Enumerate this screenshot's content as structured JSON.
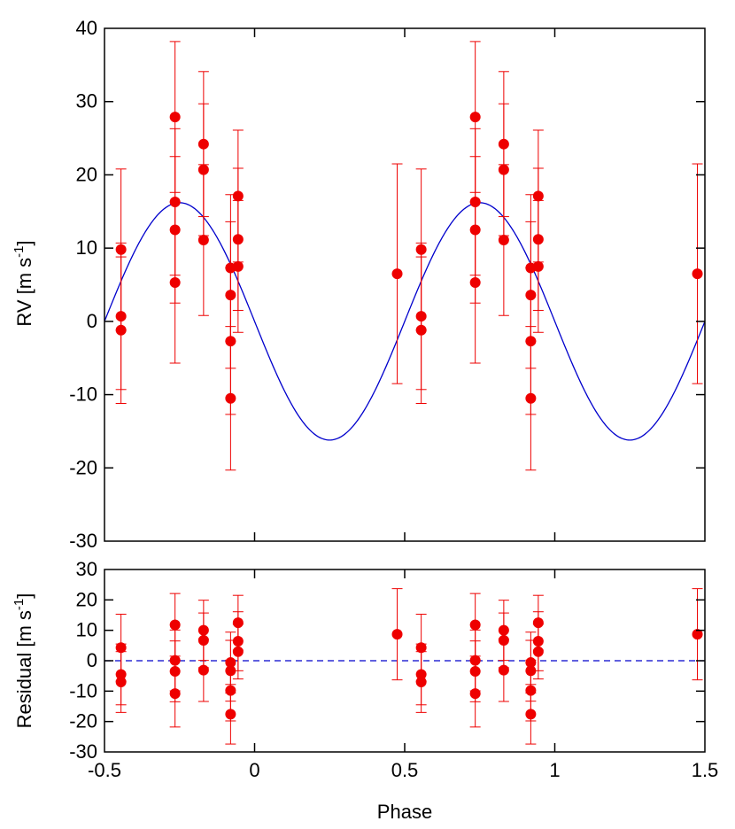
{
  "chart_data": [
    {
      "type": "scatter",
      "panel": "top",
      "xlabel": "",
      "ylabel": "RV [m s",
      "ylabel_sup": "-1",
      "ylabel_close": "]",
      "xlim": [
        -0.5,
        1.5
      ],
      "ylim": [
        -30,
        40
      ],
      "xticks": [
        -0.5,
        0,
        0.5,
        1,
        1.5
      ],
      "yticks": [
        -30,
        -20,
        -10,
        0,
        10,
        20,
        30,
        40
      ],
      "ytick_labels": [
        "-30",
        "-20",
        "-10",
        "0",
        "10",
        "20",
        "30",
        "40"
      ],
      "grid": false,
      "colors": {
        "points": "#ee0000",
        "model": "#0000cc"
      },
      "model": {
        "kind": "sinusoid",
        "amplitude": 16.2,
        "period": 1.0,
        "peak_phase": -0.25
      },
      "series": [
        {
          "x": [
            -0.445,
            -0.445,
            -0.445,
            -0.265,
            -0.265,
            -0.265,
            -0.265,
            -0.17,
            -0.17,
            -0.17,
            -0.08,
            -0.08,
            -0.08,
            -0.08,
            -0.055,
            -0.055,
            -0.055,
            0.475,
            0.555,
            0.555,
            0.555,
            0.735,
            0.735,
            0.735,
            0.735,
            0.83,
            0.83,
            0.83,
            0.92,
            0.92,
            0.92,
            0.92,
            0.945,
            0.945,
            0.945,
            1.475
          ],
          "y": [
            9.8,
            0.7,
            -1.2,
            27.9,
            16.3,
            12.5,
            5.3,
            24.2,
            20.7,
            11.1,
            7.3,
            3.6,
            -2.7,
            -10.5,
            17.1,
            11.2,
            7.5,
            6.5,
            9.8,
            0.7,
            -1.2,
            27.9,
            16.3,
            12.5,
            5.3,
            24.2,
            20.7,
            11.1,
            7.3,
            3.6,
            -2.7,
            -10.5,
            17.1,
            11.2,
            7.5,
            6.5
          ],
          "err": [
            11,
            10,
            10,
            10.3,
            10,
            10,
            11,
            9.9,
            9,
            10.3,
            10,
            10,
            10,
            9.8,
            9,
            9.7,
            9,
            15,
            11,
            10,
            10,
            10.3,
            10,
            10,
            11,
            9.9,
            9,
            10.3,
            10,
            10,
            10,
            9.8,
            9,
            9.7,
            9,
            15
          ]
        }
      ]
    },
    {
      "type": "scatter",
      "panel": "bottom",
      "xlabel": "Phase",
      "ylabel": "Residual [m s",
      "ylabel_sup": "-1",
      "ylabel_close": "]",
      "xlim": [
        -0.5,
        1.5
      ],
      "ylim": [
        -30,
        30
      ],
      "xticks": [
        -0.5,
        0,
        0.5,
        1,
        1.5
      ],
      "xtick_labels": [
        "-0.5",
        "0",
        "0.5",
        "1",
        "1.5"
      ],
      "yticks": [
        -30,
        -20,
        -10,
        0,
        10,
        20,
        30
      ],
      "ytick_labels": [
        "-30",
        "-20",
        "-10",
        "0",
        "10",
        "20",
        "30"
      ],
      "grid": false,
      "colors": {
        "points": "#ee0000",
        "zero_line": "#0000cc"
      },
      "zero_line": {
        "y": 0,
        "style": "dashed"
      },
      "series": [
        {
          "x": [
            -0.445,
            -0.445,
            -0.445,
            -0.265,
            -0.265,
            -0.265,
            -0.265,
            -0.17,
            -0.17,
            -0.17,
            -0.08,
            -0.08,
            -0.08,
            -0.08,
            -0.055,
            -0.055,
            -0.055,
            0.475,
            0.555,
            0.555,
            0.555,
            0.735,
            0.735,
            0.735,
            0.735,
            0.83,
            0.83,
            0.83,
            0.92,
            0.92,
            0.92,
            0.92,
            0.945,
            0.945,
            0.945,
            1.475
          ],
          "y": [
            4.3,
            -4.5,
            -7.0,
            11.8,
            0.1,
            -3.5,
            -10.8,
            10.0,
            6.7,
            -3.1,
            -0.6,
            -3.3,
            -9.8,
            -17.6,
            12.5,
            6.4,
            3.0,
            8.7,
            4.3,
            -4.5,
            -7.0,
            11.8,
            0.1,
            -3.5,
            -10.8,
            10.0,
            6.7,
            -3.1,
            -0.6,
            -3.3,
            -9.8,
            -17.6,
            12.5,
            6.4,
            3.0,
            8.7
          ],
          "err": [
            11,
            10,
            10,
            10.3,
            10,
            10,
            11,
            9.9,
            9,
            10.3,
            10,
            10,
            10,
            9.8,
            9,
            9.7,
            9,
            15,
            11,
            10,
            10,
            10.3,
            10,
            10,
            11,
            9.9,
            9,
            10.3,
            10,
            10,
            10,
            9.8,
            9,
            9.7,
            9,
            15
          ]
        }
      ]
    }
  ]
}
